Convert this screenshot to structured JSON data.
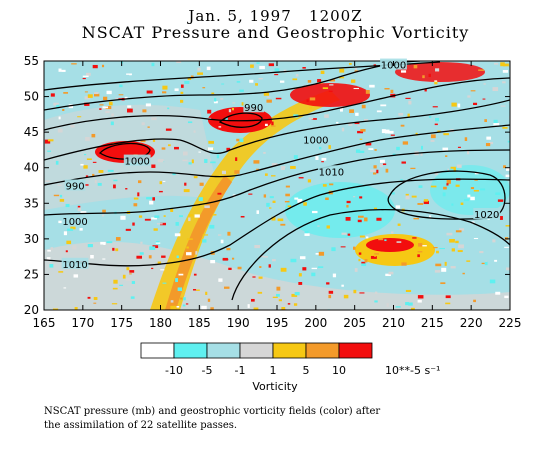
{
  "title": {
    "line1": "Jan. 5, 1997   1200Z",
    "line2": "NSCAT Pressure and Geostrophic Vorticity"
  },
  "axes": {
    "x_ticks": [
      "165",
      "170",
      "175",
      "180",
      "185",
      "190",
      "195",
      "200",
      "205",
      "210",
      "215",
      "220",
      "225"
    ],
    "y_ticks": [
      "20",
      "25",
      "30",
      "35",
      "40",
      "45",
      "50",
      "55"
    ],
    "xlim": [
      165,
      225
    ],
    "ylim": [
      20,
      55
    ]
  },
  "contour_labels": [
    {
      "text": "1000",
      "lon": 210,
      "lat": 54.5
    },
    {
      "text": "990",
      "lon": 192,
      "lat": 48.5
    },
    {
      "text": "1000",
      "lon": 177,
      "lat": 41
    },
    {
      "text": "990",
      "lon": 169,
      "lat": 37.5
    },
    {
      "text": "1000",
      "lon": 169,
      "lat": 32.5
    },
    {
      "text": "1010",
      "lon": 169,
      "lat": 26.5
    },
    {
      "text": "1000",
      "lon": 200,
      "lat": 44
    },
    {
      "text": "1010",
      "lon": 202,
      "lat": 39.5
    },
    {
      "text": "1020",
      "lon": 222,
      "lat": 33.5
    }
  ],
  "legend": {
    "colors": [
      "#ffffff",
      "#5ff0f0",
      "#a6dfe6",
      "#d6d6d6",
      "#f6c814",
      "#f39a2a",
      "#f20e0e"
    ],
    "labels": [
      "-10",
      "-5",
      "-1",
      "1",
      "5",
      "10"
    ],
    "unit": "10**-5 s⁻¹",
    "title": "Vorticity"
  },
  "caption": {
    "line1": "NSCAT pressure (mb) and geostrophic vorticity fields (color) after",
    "line2": "the assimilation of 22 satellite passes."
  }
}
